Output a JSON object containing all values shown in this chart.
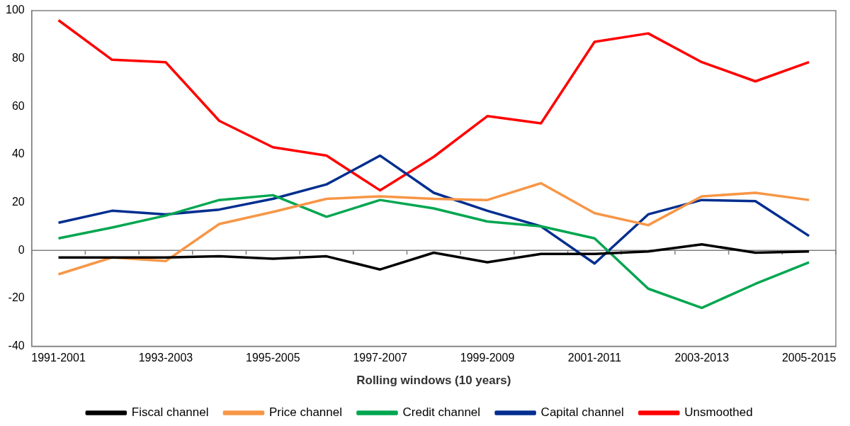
{
  "chart_data": {
    "type": "line",
    "xlabel": "Rolling windows (10 years)",
    "categories": [
      "1991-2001",
      null,
      "1993-2003",
      null,
      "1995-2005",
      null,
      "1997-2007",
      null,
      "1999-2009",
      null,
      "2001-2011",
      null,
      "2003-2013",
      null,
      "2005-2015"
    ],
    "ylim": [
      -40,
      100
    ],
    "yticks": [
      -40,
      -20,
      0,
      20,
      40,
      60,
      80,
      100
    ],
    "grid": false,
    "legend": "bottom",
    "marker": "none",
    "line_style": "solid",
    "ref_lines": [
      {
        "axis": "y",
        "value": 0,
        "color": "#808080"
      }
    ],
    "series": [
      {
        "name": "Fiscal channel",
        "color": "#000000",
        "values": [
          -3,
          -3,
          -3,
          -2.5,
          -3.5,
          -2.5,
          -8,
          -1,
          -5,
          -1.5,
          -1.5,
          -0.5,
          2.5,
          -1,
          -0.5
        ]
      },
      {
        "name": "Price channel",
        "color": "#f79646",
        "values": [
          -10,
          -3,
          -4.5,
          11,
          16,
          21.5,
          22.5,
          21.5,
          21,
          28,
          15.5,
          10.5,
          22.5,
          24,
          21
        ]
      },
      {
        "name": "Credit channel",
        "color": "#00a650",
        "values": [
          5,
          9.5,
          14.5,
          21,
          23,
          14,
          21,
          17.5,
          12,
          10,
          5,
          -16,
          -24,
          -14,
          -5
        ]
      },
      {
        "name": "Capital channel",
        "color": "#002e8f",
        "values": [
          11.5,
          16.5,
          15,
          17,
          21.5,
          27.5,
          39.5,
          24,
          16.5,
          10,
          -5.5,
          15,
          21,
          20.5,
          6
        ]
      },
      {
        "name": "Unsmoothed",
        "color": "#ff0000",
        "values": [
          96,
          79.5,
          78.5,
          54,
          43,
          39.5,
          25,
          39,
          56,
          53,
          87,
          90.5,
          78.5,
          70.5,
          78.5
        ]
      }
    ]
  }
}
